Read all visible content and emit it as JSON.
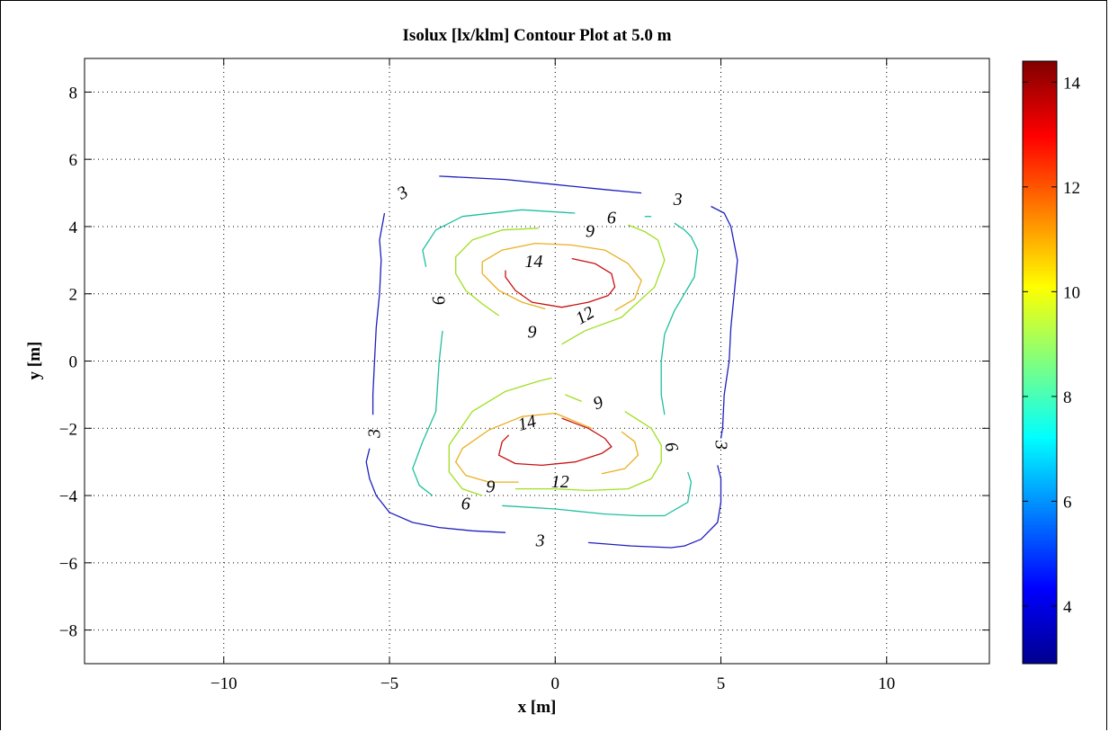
{
  "chart_data": {
    "type": "contour",
    "title": "Isolux [lx/klm] Contour Plot at 5.0 m",
    "xlabel": "x [m]",
    "ylabel": "y [m]",
    "xlim": [
      -14.2,
      13.1
    ],
    "ylim": [
      -9,
      9
    ],
    "xticks": [
      -10,
      -5,
      0,
      5,
      10
    ],
    "xtick_labels": [
      "−10",
      "−5",
      "0",
      "5",
      "10"
    ],
    "yticks": [
      -8,
      -6,
      -4,
      -2,
      0,
      2,
      4,
      6,
      8
    ],
    "ytick_labels": [
      "−8",
      "−6",
      "−4",
      "−2",
      "0",
      "2",
      "4",
      "6",
      "8"
    ],
    "grid": true,
    "colorbar": {
      "colormap": "jet",
      "range": [
        2.9,
        14.4
      ],
      "ticks": [
        4,
        6,
        8,
        10,
        12,
        14
      ],
      "tick_labels": [
        "4",
        "6",
        "8",
        "10",
        "12",
        "14"
      ]
    },
    "contours": [
      {
        "level": 3,
        "color": "#1f1fbf",
        "lines": [
          [
            [
              -3.5,
              5.5
            ],
            [
              -1.5,
              5.4
            ],
            [
              0,
              5.25
            ],
            [
              1.5,
              5.1
            ],
            [
              2.6,
              5.0
            ]
          ],
          [
            [
              4.7,
              4.6
            ],
            [
              5.1,
              4.4
            ],
            [
              5.3,
              4.0
            ],
            [
              5.5,
              3.0
            ],
            [
              5.4,
              2.0
            ],
            [
              5.3,
              1.0
            ],
            [
              5.25,
              0
            ],
            [
              5.1,
              -1
            ],
            [
              5.05,
              -2
            ],
            [
              5.0,
              -2.3
            ]
          ],
          [
            [
              4.9,
              -3.1
            ],
            [
              5.0,
              -3.5
            ],
            [
              5.0,
              -4.2
            ],
            [
              4.9,
              -4.8
            ],
            [
              4.4,
              -5.3
            ],
            [
              3.9,
              -5.5
            ],
            [
              3.5,
              -5.55
            ],
            [
              2.3,
              -5.5
            ],
            [
              1.0,
              -5.4
            ]
          ],
          [
            [
              -1.5,
              -5.1
            ],
            [
              -2.5,
              -5.05
            ],
            [
              -3.5,
              -4.95
            ],
            [
              -4.3,
              -4.8
            ],
            [
              -5.0,
              -4.5
            ],
            [
              -5.4,
              -4.0
            ],
            [
              -5.6,
              -3.5
            ],
            [
              -5.7,
              -3.0
            ],
            [
              -5.6,
              -2.6
            ]
          ],
          [
            [
              -5.5,
              -1.6
            ],
            [
              -5.5,
              -1
            ],
            [
              -5.45,
              0
            ],
            [
              -5.4,
              1.0
            ],
            [
              -5.3,
              2.0
            ],
            [
              -5.25,
              3.0
            ],
            [
              -5.3,
              3.6
            ],
            [
              -5.15,
              4.4
            ]
          ]
        ],
        "labels": [
          {
            "text": "3",
            "x": -4.6,
            "y": 5.0,
            "angle": -30
          },
          {
            "text": "3",
            "x": 3.7,
            "y": 4.8,
            "angle": 0
          },
          {
            "text": "3",
            "x": 5.0,
            "y": -2.5,
            "angle": 90
          },
          {
            "text": "3",
            "x": -0.45,
            "y": -5.35,
            "angle": 0
          },
          {
            "text": "3",
            "x": -5.45,
            "y": -2.15,
            "angle": -90
          }
        ]
      },
      {
        "level": 6,
        "color": "#1fbf9f",
        "lines": [
          [
            [
              0.6,
              4.4
            ],
            [
              -1.0,
              4.5
            ],
            [
              -2.8,
              4.3
            ],
            [
              -3.6,
              3.9
            ],
            [
              -4.0,
              3.3
            ],
            [
              -3.9,
              2.8
            ]
          ],
          [
            [
              -3.4,
              0.9
            ],
            [
              -3.5,
              0
            ],
            [
              -3.6,
              -1.5
            ],
            [
              -4.0,
              -2.4
            ],
            [
              -4.3,
              -3.2
            ],
            [
              -4.1,
              -3.7
            ],
            [
              -3.7,
              -4.0
            ]
          ],
          [
            [
              -1.6,
              -4.3
            ],
            [
              0,
              -4.4
            ],
            [
              1.5,
              -4.55
            ],
            [
              2.5,
              -4.6
            ],
            [
              3.3,
              -4.6
            ],
            [
              4.0,
              -4.2
            ],
            [
              4.1,
              -3.6
            ],
            [
              4.0,
              -3.3
            ]
          ],
          [
            [
              3.3,
              -1.6
            ],
            [
              3.2,
              -1
            ],
            [
              3.2,
              0
            ],
            [
              3.3,
              0.8
            ],
            [
              3.6,
              1.5
            ],
            [
              4.2,
              2.5
            ],
            [
              4.3,
              3.3
            ],
            [
              4.1,
              3.7
            ],
            [
              3.9,
              3.9
            ],
            [
              3.6,
              4.1
            ]
          ],
          [
            [
              2.9,
              4.3
            ],
            [
              2.7,
              4.3
            ]
          ]
        ],
        "labels": [
          {
            "text": "6",
            "x": 1.7,
            "y": 4.25,
            "angle": 0
          },
          {
            "text": "6",
            "x": 3.5,
            "y": -2.55,
            "angle": 75
          },
          {
            "text": "6",
            "x": -2.7,
            "y": -4.25,
            "angle": 0
          },
          {
            "text": "6",
            "x": -3.5,
            "y": 1.8,
            "angle": -100
          }
        ]
      },
      {
        "level": 9,
        "color": "#9fdf1f",
        "lines": [
          [
            [
              -0.5,
              3.95
            ],
            [
              -1.6,
              3.9
            ],
            [
              -2.5,
              3.6
            ],
            [
              -3.0,
              3.1
            ],
            [
              -3.0,
              2.6
            ],
            [
              -2.7,
              2.1
            ],
            [
              -2.2,
              1.7
            ],
            [
              -1.7,
              1.35
            ]
          ],
          [
            [
              0.2,
              0.5
            ],
            [
              0.9,
              0.9
            ],
            [
              2.0,
              1.3
            ],
            [
              3.0,
              2.2
            ],
            [
              3.3,
              3.0
            ],
            [
              3.1,
              3.6
            ],
            [
              2.7,
              3.85
            ],
            [
              2.2,
              4.05
            ]
          ],
          [
            [
              -0.1,
              -0.5
            ],
            [
              -0.5,
              -0.6
            ],
            [
              -1.5,
              -0.9
            ],
            [
              -2.5,
              -1.5
            ],
            [
              -3.2,
              -2.5
            ],
            [
              -3.2,
              -3.3
            ],
            [
              -2.8,
              -3.8
            ],
            [
              -2.2,
              -4.0
            ]
          ],
          [
            [
              -1.2,
              -3.8
            ],
            [
              0,
              -3.8
            ],
            [
              1.0,
              -3.85
            ],
            [
              2.2,
              -3.8
            ],
            [
              2.9,
              -3.5
            ],
            [
              3.2,
              -3.0
            ],
            [
              3.2,
              -2.5
            ],
            [
              2.9,
              -2.0
            ],
            [
              2.1,
              -1.5
            ]
          ],
          [
            [
              0.8,
              -1.2
            ],
            [
              0.3,
              -1.0
            ]
          ]
        ],
        "labels": [
          {
            "text": "9",
            "x": 1.05,
            "y": 3.85,
            "angle": 0
          },
          {
            "text": "9",
            "x": -0.7,
            "y": 0.85,
            "angle": 0
          },
          {
            "text": "9",
            "x": 1.3,
            "y": -1.25,
            "angle": -20
          },
          {
            "text": "9",
            "x": -1.95,
            "y": -3.75,
            "angle": 0
          }
        ]
      },
      {
        "level": 12,
        "color": "#e9b01f",
        "lines": [
          [
            [
              -2.2,
              2.95
            ],
            [
              -1.6,
              3.3
            ],
            [
              -0.6,
              3.5
            ],
            [
              0.5,
              3.45
            ],
            [
              1.5,
              3.3
            ],
            [
              2.2,
              2.9
            ],
            [
              2.6,
              2.4
            ],
            [
              2.4,
              1.85
            ],
            [
              1.8,
              1.5
            ]
          ],
          [
            [
              -0.3,
              1.55
            ],
            [
              -1.0,
              1.75
            ],
            [
              -1.7,
              2.1
            ],
            [
              -2.2,
              2.6
            ],
            [
              -2.2,
              2.95
            ]
          ],
          [
            [
              1.1,
              -2.0
            ],
            [
              0,
              -1.55
            ],
            [
              -1.0,
              -1.65
            ],
            [
              -2.0,
              -2.05
            ],
            [
              -2.8,
              -2.6
            ],
            [
              -3.0,
              -3.0
            ],
            [
              -2.7,
              -3.4
            ],
            [
              -2.0,
              -3.6
            ],
            [
              -1.1,
              -3.6
            ]
          ],
          [
            [
              1.4,
              -3.35
            ],
            [
              2.1,
              -3.2
            ],
            [
              2.5,
              -2.8
            ],
            [
              2.4,
              -2.4
            ],
            [
              2.0,
              -2.1
            ]
          ]
        ],
        "labels": [
          {
            "text": "12",
            "x": 0.9,
            "y": 1.35,
            "angle": -30
          },
          {
            "text": "12",
            "x": 0.15,
            "y": -3.6,
            "angle": 0
          }
        ]
      },
      {
        "level": 14,
        "color": "#c81010",
        "lines": [
          [
            [
              0.5,
              3.05
            ],
            [
              1.2,
              2.9
            ],
            [
              1.7,
              2.6
            ],
            [
              1.8,
              2.2
            ],
            [
              1.6,
              1.95
            ],
            [
              1.0,
              1.75
            ],
            [
              0.2,
              1.6
            ],
            [
              -0.7,
              1.75
            ],
            [
              -1.2,
              2.1
            ],
            [
              -1.5,
              2.5
            ],
            [
              -1.5,
              2.7
            ]
          ],
          [
            [
              0.2,
              -1.7
            ],
            [
              1.0,
              -2.0
            ],
            [
              1.5,
              -2.3
            ],
            [
              1.7,
              -2.55
            ],
            [
              1.4,
              -2.75
            ],
            [
              0.6,
              -3.0
            ],
            [
              -0.4,
              -3.1
            ],
            [
              -1.2,
              -3.05
            ],
            [
              -1.7,
              -2.8
            ],
            [
              -1.6,
              -2.4
            ],
            [
              -1.4,
              -2.2
            ]
          ]
        ],
        "labels": [
          {
            "text": "14",
            "x": -0.65,
            "y": 2.95,
            "angle": 0
          },
          {
            "text": "14",
            "x": -0.85,
            "y": -1.85,
            "angle": -15
          }
        ]
      }
    ]
  }
}
